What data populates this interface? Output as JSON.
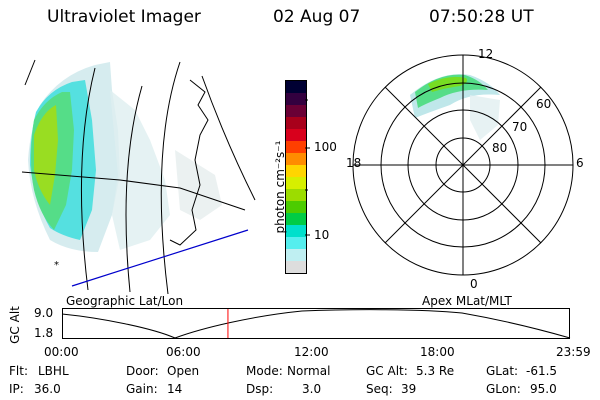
{
  "header": {
    "instrument": "Ultraviolet Imager",
    "date": "02 Aug 07",
    "time": "07:50:28 UT"
  },
  "geo_panel": {
    "label": "Geographic Lat/Lon"
  },
  "colorbar": {
    "axis_label": "photon cm⁻²s⁻¹",
    "ticks": [
      "100",
      "10"
    ],
    "colors": [
      "#000033",
      "#33003f",
      "#6a0035",
      "#a8001b",
      "#d8001c",
      "#ff3f00",
      "#ff8c00",
      "#ffd500",
      "#d6ef00",
      "#9cdc00",
      "#4ccc00",
      "#00cc45",
      "#00e0cc",
      "#55eeee",
      "#bfeff2",
      "#dddddd"
    ]
  },
  "polar_panel": {
    "label": "Apex MLat/MLT",
    "mlt_labels": {
      "top": "12",
      "bottom": "0",
      "left": "18",
      "right": "6"
    },
    "lat_labels": [
      "60",
      "70",
      "80"
    ]
  },
  "orbit": {
    "ylabel": "GC Alt",
    "y_ticks": [
      "9.0",
      "1.8"
    ],
    "x_ticks": [
      "00:00",
      "06:00",
      "12:00",
      "18:00",
      "23:59"
    ],
    "marker_time_hours": 7.84
  },
  "status": {
    "flt_label": "Flt:",
    "flt_value": "LBHL",
    "ip_label": "IP:",
    "ip_value": "36.0",
    "door_label": "Door:",
    "door_value": "Open",
    "gain_label": "Gain:",
    "gain_value": "14",
    "mode_label": "Mode:",
    "mode_value": "Normal",
    "dsp_label": "Dsp:",
    "dsp_value": "3.0",
    "gcalt_label": "GC Alt:",
    "gcalt_value": "5.3 Re",
    "seq_label": "Seq:",
    "seq_value": "39",
    "glat_label": "GLat:",
    "glat_value": "-61.5",
    "glon_label": "GLon:",
    "glon_value": "95.0"
  },
  "accent": {
    "marker": "#ff0000",
    "track": "#0000cc"
  }
}
